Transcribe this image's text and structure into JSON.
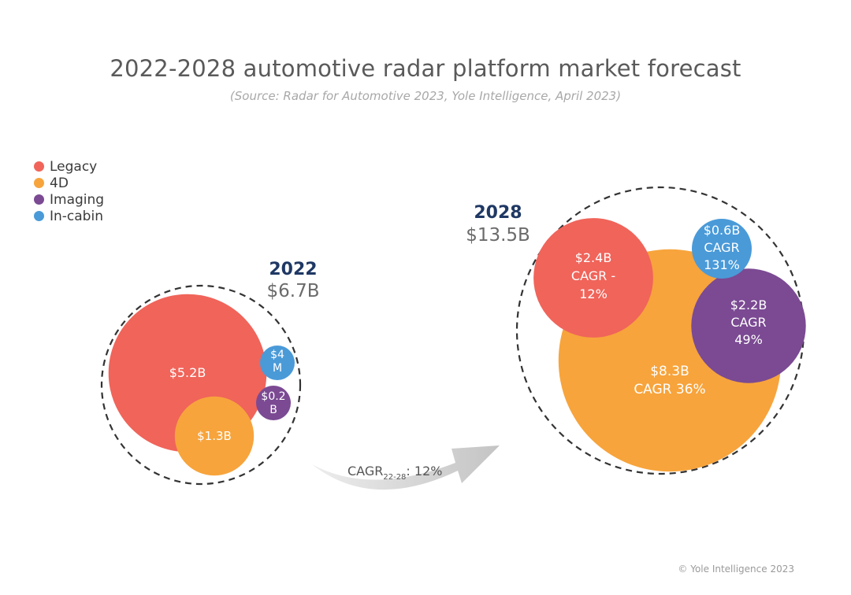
{
  "chart_data": {
    "type": "bubble",
    "title": "2022-2028 automotive radar platform market forecast",
    "subtitle": "(Source: Radar for Automotive 2023, Yole Intelligence, April 2023)",
    "legend": [
      {
        "name": "Legacy",
        "color": "#f0645a"
      },
      {
        "name": "4D",
        "color": "#f7a43c"
      },
      {
        "name": "Imaging",
        "color": "#7b4a93"
      },
      {
        "name": "In-cabin",
        "color": "#4a9ad8"
      }
    ],
    "years": [
      {
        "year": "2022",
        "total": "$6.7B",
        "segments": [
          {
            "name": "Legacy",
            "value_usd_b": 5.2,
            "label_lines": [
              "$5.2B"
            ]
          },
          {
            "name": "4D",
            "value_usd_b": 1.3,
            "label_lines": [
              "$1.3B"
            ]
          },
          {
            "name": "Imaging",
            "value_usd_b": 0.2,
            "label_lines": [
              "$0.2",
              "B"
            ]
          },
          {
            "name": "In-cabin",
            "value_usd_b": 0.004,
            "label_lines": [
              "$4",
              "M"
            ]
          }
        ]
      },
      {
        "year": "2028",
        "total": "$13.5B",
        "segments": [
          {
            "name": "4D",
            "value_usd_b": 8.3,
            "cagr_pct": 36,
            "label_lines": [
              "$8.3B",
              "CAGR 36%"
            ]
          },
          {
            "name": "Legacy",
            "value_usd_b": 2.4,
            "cagr_pct": -12,
            "label_lines": [
              "$2.4B",
              "CAGR -",
              "12%"
            ]
          },
          {
            "name": "Imaging",
            "value_usd_b": 2.2,
            "cagr_pct": 49,
            "label_lines": [
              "$2.2B",
              "CAGR",
              "49%"
            ]
          },
          {
            "name": "In-cabin",
            "value_usd_b": 0.6,
            "cagr_pct": 131,
            "label_lines": [
              "$0.6B",
              "CAGR",
              "131%"
            ]
          }
        ]
      }
    ],
    "overall_cagr": {
      "prefix": "CAGR",
      "subscript": "22-28",
      "suffix": ": 12%"
    }
  },
  "footer": "© Yole Intelligence 2023"
}
